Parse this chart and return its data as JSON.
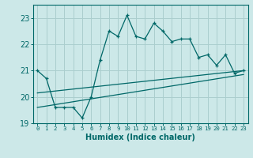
{
  "xlabel": "Humidex (Indice chaleur)",
  "background_color": "#cce8e8",
  "grid_color": "#aacece",
  "line_color": "#006868",
  "ylim": [
    19,
    23.5
  ],
  "xlim": [
    -0.5,
    23.5
  ],
  "yticks": [
    19,
    20,
    21,
    22,
    23
  ],
  "xticks": [
    0,
    1,
    2,
    3,
    4,
    5,
    6,
    7,
    8,
    9,
    10,
    11,
    12,
    13,
    14,
    15,
    16,
    17,
    18,
    19,
    20,
    21,
    22,
    23
  ],
  "main_x": [
    0,
    1,
    2,
    3,
    4,
    5,
    6,
    7,
    8,
    9,
    10,
    11,
    12,
    13,
    14,
    15,
    16,
    17,
    18,
    19,
    20,
    21,
    22,
    23
  ],
  "main_y": [
    21.0,
    20.7,
    19.6,
    19.6,
    19.6,
    19.2,
    20.0,
    21.4,
    22.5,
    22.3,
    23.1,
    22.3,
    22.2,
    22.8,
    22.5,
    22.1,
    22.2,
    22.2,
    21.5,
    21.6,
    21.2,
    21.6,
    20.9,
    21.0
  ],
  "trend1_x": [
    0,
    23
  ],
  "trend1_y": [
    19.6,
    20.85
  ],
  "trend2_x": [
    0,
    23
  ],
  "trend2_y": [
    20.15,
    21.0
  ]
}
